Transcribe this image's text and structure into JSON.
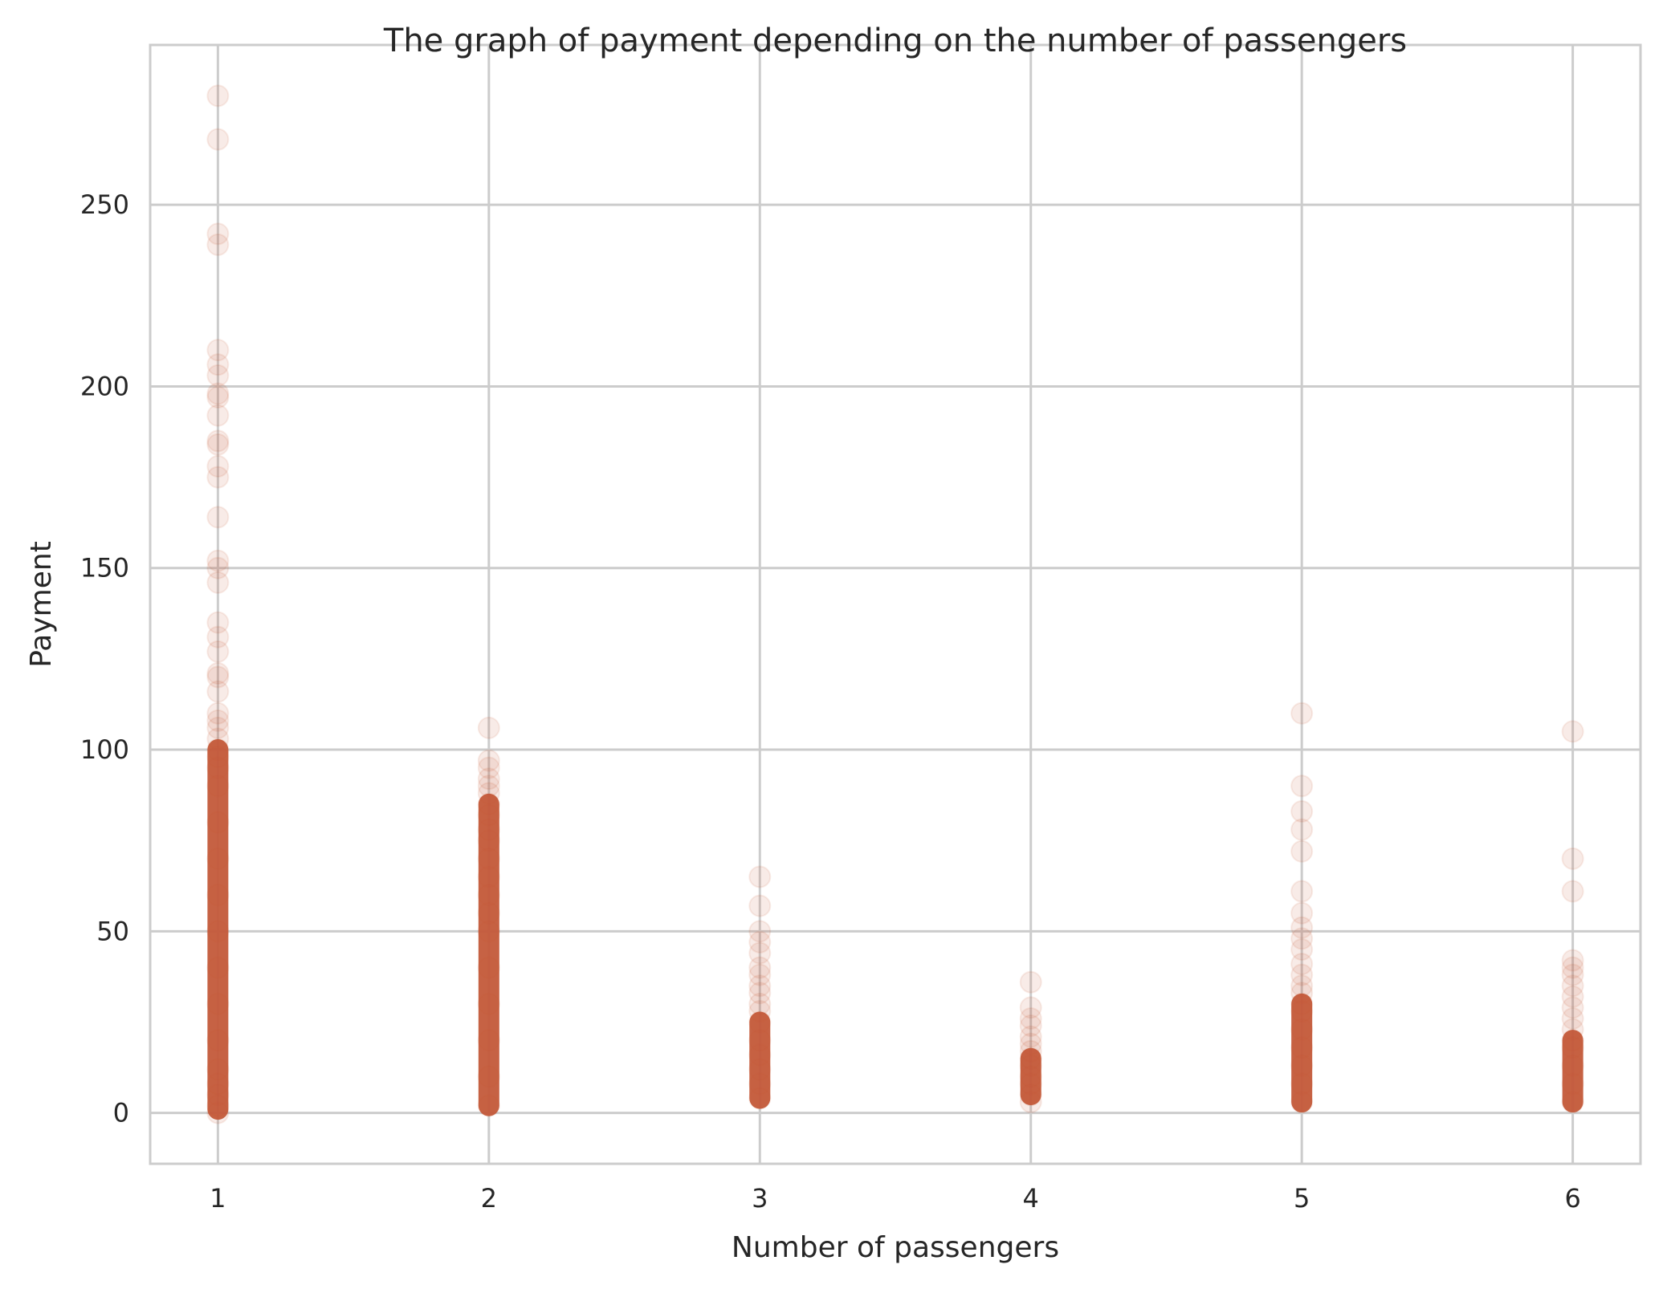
{
  "chart_data": {
    "type": "scatter",
    "title": "The graph of payment depending on the number of passengers",
    "xlabel": "Number of passengers",
    "ylabel": "Payment",
    "xlim": [
      0.75,
      6.25
    ],
    "ylim": [
      -14,
      294
    ],
    "xticks": [
      "1",
      "2",
      "3",
      "4",
      "5",
      "6"
    ],
    "yticks": [
      "0",
      "50",
      "100",
      "150",
      "200",
      "250"
    ],
    "xtick_values": [
      1,
      2,
      3,
      4,
      5,
      6
    ],
    "ytick_values": [
      0,
      50,
      100,
      150,
      200,
      250
    ],
    "grid": true,
    "marker_color": "#c45a3b",
    "marker_alpha": 0.12,
    "series": [
      {
        "x_value": 1,
        "dense_range": [
          1,
          100
        ],
        "points": [
          0,
          2,
          5,
          8,
          12,
          20,
          30,
          40,
          50,
          60,
          70,
          80,
          90,
          95,
          98,
          100,
          103,
          106,
          108,
          110,
          116,
          120,
          121,
          127,
          131,
          135,
          146,
          150,
          152,
          164,
          175,
          178,
          184,
          185,
          192,
          197,
          198,
          203,
          206,
          210,
          239,
          242,
          268,
          280
        ]
      },
      {
        "x_value": 2,
        "dense_range": [
          2,
          85
        ],
        "points": [
          2,
          10,
          20,
          30,
          40,
          50,
          55,
          60,
          65,
          70,
          75,
          78,
          82,
          85,
          88,
          90,
          92,
          95,
          97,
          106
        ]
      },
      {
        "x_value": 3,
        "dense_range": [
          4,
          25
        ],
        "points": [
          4,
          8,
          12,
          16,
          20,
          25,
          28,
          30,
          33,
          35,
          38,
          40,
          44,
          47,
          50,
          57,
          65
        ]
      },
      {
        "x_value": 4,
        "dense_range": [
          5,
          15
        ],
        "points": [
          3,
          5,
          8,
          10,
          13,
          15,
          17,
          19,
          21,
          24,
          26,
          29,
          36
        ]
      },
      {
        "x_value": 5,
        "dense_range": [
          3,
          30
        ],
        "points": [
          3,
          8,
          13,
          18,
          23,
          28,
          30,
          33,
          35,
          38,
          41,
          45,
          48,
          51,
          55,
          61,
          72,
          78,
          83,
          90,
          110
        ]
      },
      {
        "x_value": 6,
        "dense_range": [
          3,
          20
        ],
        "points": [
          3,
          8,
          13,
          18,
          20,
          23,
          26,
          29,
          32,
          35,
          38,
          40,
          42,
          61,
          70,
          105
        ]
      }
    ]
  }
}
